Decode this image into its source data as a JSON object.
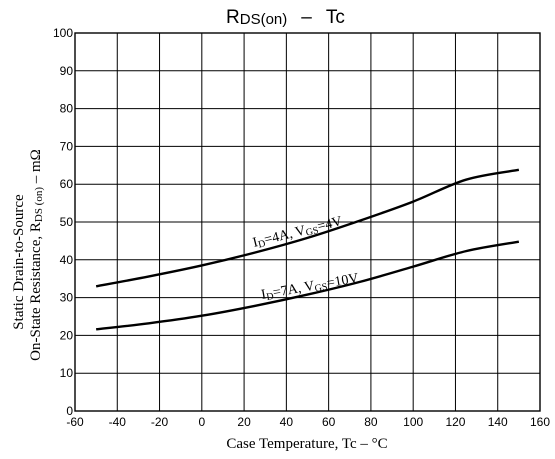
{
  "chart_data": {
    "type": "line",
    "title": {
      "main": "R",
      "sub": "DS(on)",
      "sep": "–",
      "tail": "Tc"
    },
    "xlabel": "Case Temperature, Tc  –  °C",
    "ylabel": {
      "line1": "Static Drain-to-Source",
      "line2_pre": "On-State Resistance, R",
      "line2_sub": "DS (on)",
      "line2_post": "  –  mΩ"
    },
    "xlim": [
      -60,
      160
    ],
    "ylim": [
      0,
      100
    ],
    "x_ticks": [
      "-60",
      "-40",
      "-20",
      "0",
      "20",
      "40",
      "60",
      "80",
      "100",
      "120",
      "140",
      "160"
    ],
    "y_ticks": [
      "0",
      "10",
      "20",
      "30",
      "40",
      "50",
      "60",
      "70",
      "80",
      "90",
      "100"
    ],
    "grid": true,
    "x": [
      -50,
      -25,
      0,
      25,
      50,
      75,
      100,
      125,
      150
    ],
    "series": [
      {
        "label": {
          "i": "I",
          "isub": "D",
          "mid": "=4A, V",
          "vsub": "GS",
          "end": "=4V"
        },
        "values": [
          33,
          35.6,
          38.5,
          41.9,
          45.8,
          50.4,
          55.4,
          61.2,
          63.8
        ]
      },
      {
        "label": {
          "i": "I",
          "isub": "D",
          "mid": "=7A, V",
          "vsub": "GS",
          "end": "=10V"
        },
        "values": [
          21.6,
          23.2,
          25.2,
          27.8,
          30.8,
          34.2,
          38.2,
          42.3,
          44.8
        ]
      }
    ]
  }
}
